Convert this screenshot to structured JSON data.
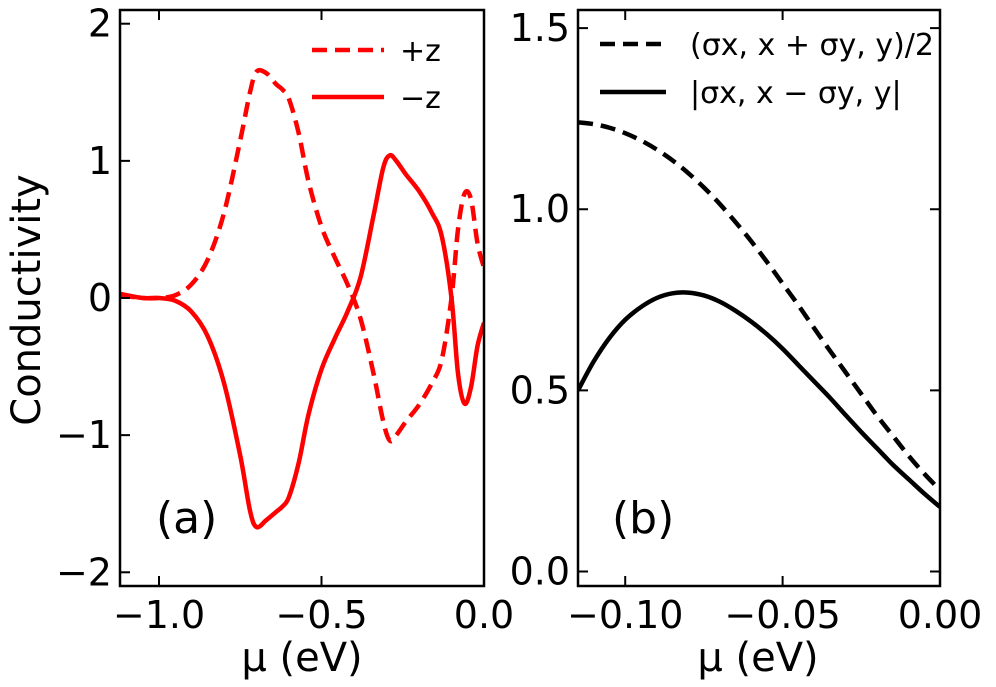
{
  "figure": {
    "ylabel": "Conductivity"
  },
  "chart_data": [
    {
      "type": "line",
      "panel_label": "(a)",
      "xlabel": "μ (eV)",
      "ylabel": "Conductivity",
      "xlim": [
        -1.12,
        0.0
      ],
      "ylim": [
        -2.1,
        2.1
      ],
      "xticks": [
        -1.0,
        -0.5,
        0.0
      ],
      "xtick_labels": [
        "−1.0",
        "−0.5",
        "0.0"
      ],
      "yticks": [
        -2,
        -1,
        0,
        1,
        2
      ],
      "ytick_labels": [
        "−2",
        "−1",
        "0",
        "1",
        "2"
      ],
      "legend_position": "top-right",
      "series": [
        {
          "name": "+z",
          "legend_label": "+z",
          "color": "#ff0000",
          "style": "dashed",
          "x": [
            -1.12,
            -1.05,
            -1.0,
            -0.95,
            -0.9,
            -0.85,
            -0.8,
            -0.75,
            -0.72,
            -0.7,
            -0.67,
            -0.64,
            -0.62,
            -0.6,
            -0.57,
            -0.54,
            -0.5,
            -0.46,
            -0.42,
            -0.38,
            -0.34,
            -0.31,
            -0.29,
            -0.27,
            -0.24,
            -0.2,
            -0.16,
            -0.13,
            -0.1,
            -0.08,
            -0.06,
            -0.04,
            -0.02,
            0.0
          ],
          "values": [
            0.02,
            0.0,
            0.0,
            0.02,
            0.1,
            0.28,
            0.62,
            1.15,
            1.5,
            1.65,
            1.64,
            1.56,
            1.52,
            1.45,
            1.2,
            0.85,
            0.52,
            0.3,
            0.1,
            -0.15,
            -0.55,
            -0.9,
            -1.04,
            -1.0,
            -0.9,
            -0.78,
            -0.62,
            -0.45,
            0.0,
            0.5,
            0.76,
            0.72,
            0.4,
            0.22
          ]
        },
        {
          "name": "−z",
          "legend_label": "−z",
          "color": "#ff0000",
          "style": "solid",
          "x": [
            -1.12,
            -1.05,
            -1.0,
            -0.95,
            -0.9,
            -0.85,
            -0.8,
            -0.75,
            -0.72,
            -0.7,
            -0.67,
            -0.64,
            -0.62,
            -0.6,
            -0.57,
            -0.54,
            -0.5,
            -0.46,
            -0.42,
            -0.38,
            -0.34,
            -0.31,
            -0.29,
            -0.27,
            -0.24,
            -0.2,
            -0.16,
            -0.13,
            -0.1,
            -0.08,
            -0.06,
            -0.04,
            -0.02,
            0.0
          ],
          "values": [
            0.03,
            0.0,
            0.0,
            -0.02,
            -0.1,
            -0.28,
            -0.62,
            -1.15,
            -1.55,
            -1.67,
            -1.62,
            -1.56,
            -1.52,
            -1.45,
            -1.2,
            -0.85,
            -0.52,
            -0.3,
            -0.1,
            0.15,
            0.6,
            0.95,
            1.04,
            1.0,
            0.9,
            0.78,
            0.62,
            0.45,
            0.0,
            -0.55,
            -0.77,
            -0.65,
            -0.35,
            -0.18
          ]
        }
      ]
    },
    {
      "type": "line",
      "panel_label": "(b)",
      "xlabel": "μ (eV)",
      "xlim": [
        -0.115,
        0.0
      ],
      "ylim": [
        -0.04,
        1.55
      ],
      "xticks": [
        -0.1,
        -0.05,
        0.0
      ],
      "xtick_labels": [
        "−0.10",
        "−0.05",
        "0.00"
      ],
      "yticks": [
        0.0,
        0.5,
        1.0,
        1.5
      ],
      "ytick_labels": [
        "0.0",
        "0.5",
        "1.0",
        "1.5"
      ],
      "legend_position": "top-left",
      "series": [
        {
          "name": "(σx,x + σy,y)/2",
          "legend_label": "(σx, x + σy, y)/2",
          "color": "#000000",
          "style": "dashed",
          "x": [
            -0.115,
            -0.11,
            -0.105,
            -0.1,
            -0.095,
            -0.09,
            -0.085,
            -0.08,
            -0.075,
            -0.07,
            -0.065,
            -0.06,
            -0.055,
            -0.05,
            -0.045,
            -0.04,
            -0.035,
            -0.03,
            -0.025,
            -0.02,
            -0.015,
            -0.01,
            -0.005,
            0.0
          ],
          "values": [
            1.24,
            1.235,
            1.225,
            1.21,
            1.19,
            1.165,
            1.135,
            1.1,
            1.06,
            1.015,
            0.965,
            0.912,
            0.855,
            0.795,
            0.735,
            0.672,
            0.61,
            0.55,
            0.49,
            0.43,
            0.375,
            0.32,
            0.27,
            0.225
          ]
        },
        {
          "name": "|σx,x − σy,y|",
          "legend_label": "|σx, x − σy, y|",
          "color": "#000000",
          "style": "solid",
          "x": [
            -0.115,
            -0.11,
            -0.105,
            -0.1,
            -0.095,
            -0.09,
            -0.085,
            -0.08,
            -0.075,
            -0.07,
            -0.065,
            -0.06,
            -0.055,
            -0.05,
            -0.045,
            -0.04,
            -0.035,
            -0.03,
            -0.025,
            -0.02,
            -0.015,
            -0.01,
            -0.005,
            0.0
          ],
          "values": [
            0.5,
            0.58,
            0.645,
            0.695,
            0.73,
            0.755,
            0.768,
            0.77,
            0.762,
            0.745,
            0.72,
            0.69,
            0.655,
            0.615,
            0.57,
            0.525,
            0.48,
            0.432,
            0.385,
            0.34,
            0.295,
            0.255,
            0.215,
            0.178
          ]
        }
      ]
    }
  ]
}
